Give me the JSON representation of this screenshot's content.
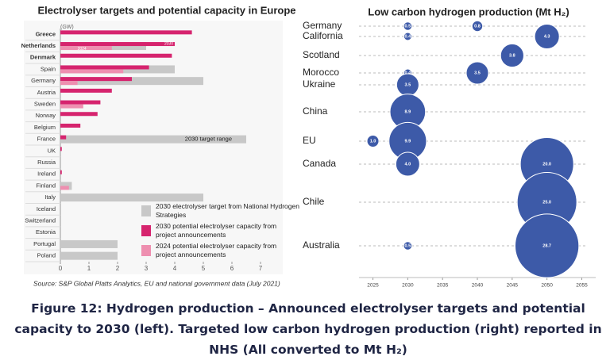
{
  "chart_data": [
    {
      "type": "hbar",
      "title": "Electrolyser targets and potential capacity in Europe",
      "unit_label": "(GW)",
      "categories": [
        "Greece",
        "Netherlands",
        "Denmark",
        "Spain",
        "Germany",
        "Austria",
        "Sweden",
        "Norway",
        "Belgium",
        "France",
        "UK",
        "Russia",
        "Ireland",
        "Finland",
        "Italy",
        "Iceland",
        "Switzerland",
        "Estonia",
        "Portugal",
        "Poland"
      ],
      "series": [
        {
          "name": "2030 electrolyser target from National Hydrogen Strategies",
          "color": "#c8c8c8",
          "values": [
            null,
            3.0,
            null,
            4.0,
            5.0,
            null,
            null,
            null,
            null,
            6.5,
            null,
            null,
            null,
            0.4,
            5.0,
            null,
            null,
            null,
            2.0,
            2.0
          ]
        },
        {
          "name": "2030 potential electrolyser capacity from project announcements",
          "color": "#d6246e",
          "values": [
            4.6,
            4.0,
            3.9,
            3.1,
            2.5,
            1.8,
            1.4,
            1.3,
            0.7,
            0.2,
            0.05,
            null,
            0.05,
            null,
            null,
            null,
            null,
            null,
            null,
            null
          ]
        },
        {
          "name": "2024 potential electrolyser capacity from project announcements",
          "color": "#ee8fb0",
          "values": [
            null,
            1.8,
            null,
            2.2,
            0.6,
            null,
            0.8,
            null,
            null,
            null,
            null,
            null,
            null,
            0.3,
            null,
            null,
            null,
            null,
            null,
            null
          ]
        }
      ],
      "annotations": [
        "2030",
        "2024",
        "2030 target range"
      ],
      "xlim": [
        0,
        7
      ],
      "xticks": [
        0,
        1,
        2,
        3,
        4,
        5,
        6,
        7
      ],
      "source": "Source: S&P Global Platts Analytics, EU and national government data (July 2021)"
    },
    {
      "type": "bubble",
      "title": "Low carbon hydrogen production (Mt H₂)",
      "categories": [
        "Germany",
        "California",
        "Scotland",
        "Morocco",
        "Ukraine",
        "China",
        "EU",
        "Canada",
        "Chile",
        "Australia"
      ],
      "points": [
        {
          "category": "Germany",
          "x": 2030,
          "size": 0.5,
          "value_label": "0.5"
        },
        {
          "category": "Germany",
          "x": 2040,
          "size": 0.8,
          "value_label": "0.8"
        },
        {
          "category": "California",
          "x": 2030,
          "size": 0.4,
          "value_label": "0.4"
        },
        {
          "category": "California",
          "x": 2050,
          "size": 4.3,
          "value_label": "4.3"
        },
        {
          "category": "Scotland",
          "x": 2045,
          "size": 3.8,
          "value_label": "3.8"
        },
        {
          "category": "Morocco",
          "x": 2030,
          "size": 0.4,
          "value_label": "0.4"
        },
        {
          "category": "Morocco",
          "x": 2040,
          "size": 3.5,
          "value_label": "3.5"
        },
        {
          "category": "Ukraine",
          "x": 2030,
          "size": 3.5,
          "value_label": "3.5"
        },
        {
          "category": "China",
          "x": 2030,
          "size": 8.9,
          "value_label": "8.9"
        },
        {
          "category": "EU",
          "x": 2025,
          "size": 1.0,
          "value_label": "1.0"
        },
        {
          "category": "EU",
          "x": 2030,
          "size": 9.9,
          "value_label": "9.9"
        },
        {
          "category": "Canada",
          "x": 2030,
          "size": 4.0,
          "value_label": "4.0"
        },
        {
          "category": "Canada",
          "x": 2050,
          "size": 20.0,
          "value_label": "20.0"
        },
        {
          "category": "Chile",
          "x": 2050,
          "size": 25.0,
          "value_label": "25.0"
        },
        {
          "category": "Australia",
          "x": 2030,
          "size": 0.5,
          "value_label": "0.5"
        },
        {
          "category": "Australia",
          "x": 2050,
          "size": 28.7,
          "value_label": "28.7"
        }
      ],
      "color": "#3d5aa8",
      "xlim": [
        2023,
        2057
      ],
      "xticks": [
        2025,
        2030,
        2035,
        2040,
        2045,
        2050,
        2055
      ]
    }
  ],
  "caption": "Figure 12: Hydrogen production – Announced electrolyser targets and potential capacity to 2030 (left). Targeted low carbon hydrogen production (right) reported in NHS (All converted to Mt H₂)"
}
